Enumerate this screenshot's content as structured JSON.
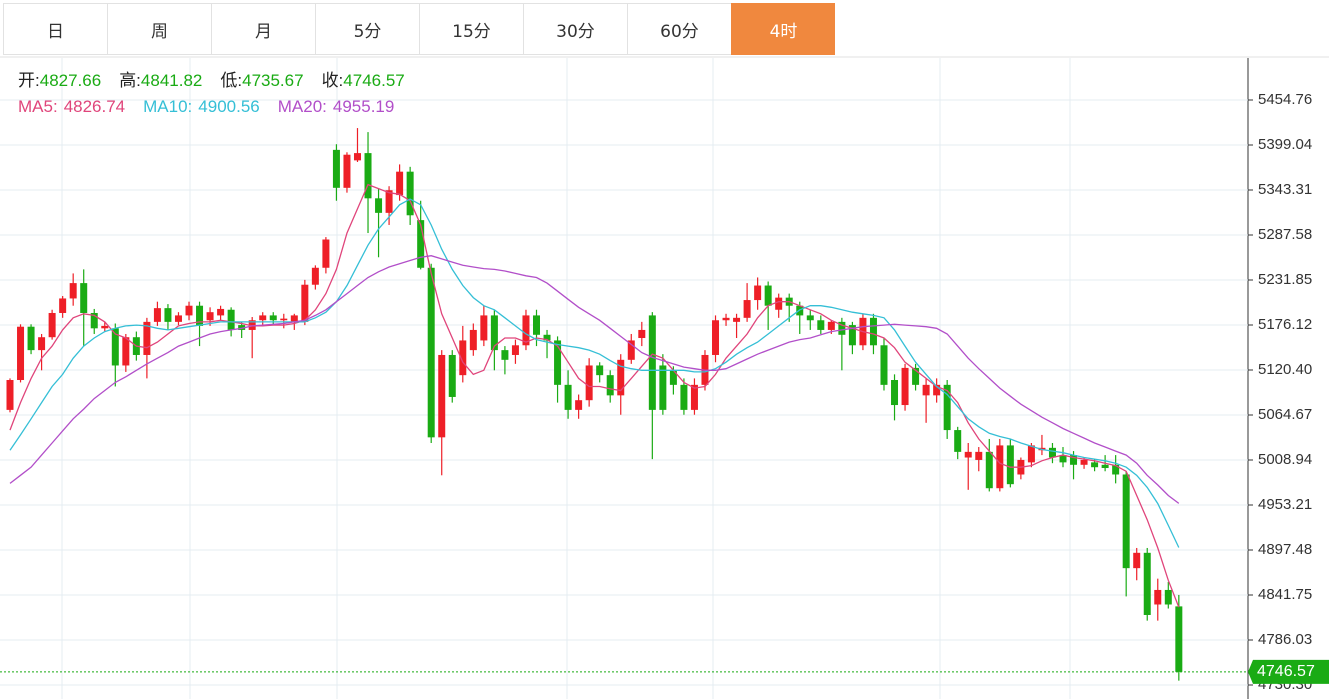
{
  "tabs": [
    "日",
    "周",
    "月",
    "5分",
    "15分",
    "30分",
    "60分",
    "4时"
  ],
  "active_tab": 7,
  "chart_data": {
    "type": "candlestick",
    "ohlc_labels": [
      "开:",
      "高:",
      "低:",
      "收:"
    ],
    "up_color": "#ee1f27",
    "down_color": "#1aab14",
    "ylim": [
      4712.96,
      5506.77
    ],
    "yticks": [
      5454.76,
      5399.04,
      5343.31,
      5287.58,
      5231.85,
      5176.12,
      {
        "value": 5120.4,
        "label": "5120.40"
      },
      5064.67,
      5008.94,
      4953.21,
      4897.48,
      4841.75,
      4786.03,
      {
        "value": 4730.3,
        "label": "4730.30"
      }
    ],
    "grid": true,
    "open": [
      5071,
      5108,
      5174,
      5145,
      5161,
      5191,
      5209,
      5228,
      5191,
      5172,
      5172,
      5126,
      5161,
      5139,
      5180,
      5197,
      5180,
      5188,
      5200,
      5182,
      5188,
      5195,
      5176,
      5170,
      5182,
      5188,
      5182,
      5180,
      5180,
      5226,
      5247,
      5393,
      5346,
      5380,
      5389,
      5333,
      5315,
      5337,
      5366,
      5306,
      5247,
      5037,
      5139,
      5114,
      5145,
      5157,
      5188,
      5145,
      5139,
      5151,
      5188,
      5164,
      5157,
      5102,
      5071,
      5083,
      5126,
      5114,
      5089,
      5133,
      5160,
      5188,
      5126,
      5120,
      5102,
      5071,
      5102,
      5139,
      5182,
      5180,
      5185,
      5207,
      5225,
      5195,
      5210,
      5200,
      5188,
      5182,
      5170,
      5180,
      5176,
      5151,
      5185,
      5151,
      5108,
      5077,
      5123,
      5089,
      5089,
      5102,
      5046,
      5012,
      5009,
      5019,
      4974,
      5027,
      4991,
      5006,
      5021,
      5024,
      5015,
      5015,
      5003,
      5006,
      5003,
      5003,
      4991,
      4875,
      4894,
      4830,
      4848,
      4827.66
    ],
    "high": [
      5110,
      5177,
      5177,
      5165,
      5195,
      5212,
      5240,
      5245,
      5196,
      5180,
      5178,
      5165,
      5168,
      5185,
      5205,
      5202,
      5192,
      5205,
      5205,
      5198,
      5200,
      5198,
      5180,
      5186,
      5192,
      5192,
      5190,
      5190,
      5232,
      5250,
      5285,
      5400,
      5390,
      5420,
      5415,
      5345,
      5348,
      5375,
      5372,
      5330,
      5252,
      5145,
      5145,
      5175,
      5178,
      5200,
      5195,
      5150,
      5158,
      5195,
      5195,
      5170,
      5162,
      5120,
      5090,
      5135,
      5130,
      5120,
      5140,
      5165,
      5180,
      5192,
      5140,
      5125,
      5110,
      5110,
      5145,
      5188,
      5190,
      5190,
      5228,
      5235,
      5230,
      5215,
      5215,
      5205,
      5195,
      5188,
      5182,
      5185,
      5180,
      5190,
      5190,
      5160,
      5115,
      5128,
      5128,
      5110,
      5110,
      5108,
      5050,
      5030,
      5025,
      5035,
      5035,
      5035,
      5012,
      5030,
      5040,
      5030,
      5025,
      5020,
      5012,
      5010,
      5015,
      5015,
      4995,
      4900,
      4900,
      4862,
      4858,
      4841.82
    ],
    "low": [
      5068,
      5105,
      5140,
      5120,
      5158,
      5185,
      5200,
      5150,
      5165,
      5168,
      5100,
      5118,
      5132,
      5110,
      5175,
      5170,
      5176,
      5182,
      5150,
      5175,
      5182,
      5162,
      5160,
      5135,
      5175,
      5176,
      5172,
      5170,
      5176,
      5220,
      5240,
      5330,
      5340,
      5378,
      5290,
      5260,
      5300,
      5330,
      5300,
      5245,
      5030,
      4990,
      5080,
      5105,
      5138,
      5150,
      5120,
      5115,
      5128,
      5145,
      5150,
      5135,
      5080,
      5060,
      5060,
      5075,
      5105,
      5080,
      5065,
      5128,
      5150,
      5010,
      5065,
      5090,
      5065,
      5065,
      5095,
      5130,
      5175,
      5160,
      5180,
      5195,
      5170,
      5185,
      5180,
      5165,
      5170,
      5165,
      5165,
      5120,
      5140,
      5145,
      5140,
      5095,
      5058,
      5070,
      5095,
      5055,
      5080,
      5035,
      5010,
      4972,
      4995,
      4970,
      4970,
      4975,
      4985,
      5000,
      5015,
      5005,
      5000,
      4985,
      4998,
      4995,
      4995,
      4980,
      4840,
      4860,
      4810,
      4810,
      4825,
      4735.67
    ],
    "close": [
      5108,
      5174,
      5145,
      5161,
      5191,
      5209,
      5228,
      5191,
      5172,
      5175,
      5126,
      5161,
      5139,
      5180,
      5197,
      5180,
      5188,
      5200,
      5175,
      5192,
      5196,
      5170,
      5170,
      5182,
      5188,
      5182,
      5184,
      5188,
      5226,
      5247,
      5282,
      5346,
      5387,
      5389,
      5333,
      5315,
      5343,
      5366,
      5312,
      5247,
      5037,
      5139,
      5087,
      5157,
      5170,
      5188,
      5145,
      5133,
      5151,
      5188,
      5164,
      5157,
      5102,
      5071,
      5083,
      5126,
      5114,
      5089,
      5133,
      5157,
      5170,
      5071,
      5071,
      5102,
      5071,
      5102,
      5139,
      5182,
      5185,
      5185,
      5207,
      5225,
      5200,
      5210,
      5200,
      5188,
      5182,
      5170,
      5180,
      5164,
      5151,
      5185,
      5151,
      5102,
      5077,
      5123,
      5102,
      5102,
      5102,
      5046,
      5019,
      5019,
      5019,
      4974,
      5027,
      4979,
      5009,
      5027,
      5024,
      5012,
      5006,
      5003,
      5009,
      5000,
      4999,
      4991,
      4875,
      4894,
      4817,
      4848,
      4830,
      4746.57
    ],
    "series": [
      {
        "name": "MA5:",
        "color": "#e0457b",
        "values": [
          5046,
          5080,
          5110,
          5135,
          5150,
          5170,
          5185,
          5190,
          5188,
          5180,
          5165,
          5160,
          5150,
          5148,
          5155,
          5165,
          5175,
          5178,
          5180,
          5180,
          5182,
          5180,
          5178,
          5175,
          5175,
          5176,
          5176,
          5178,
          5182,
          5195,
          5215,
          5245,
          5290,
          5320,
          5350,
          5345,
          5340,
          5338,
          5330,
          5300,
          5240,
          5190,
          5160,
          5130,
          5115,
          5120,
          5150,
          5160,
          5160,
          5155,
          5160,
          5158,
          5150,
          5130,
          5110,
          5100,
          5100,
          5097,
          5095,
          5110,
          5125,
          5140,
          5135,
          5120,
          5105,
          5098,
          5100,
          5115,
          5135,
          5150,
          5165,
          5185,
          5200,
          5205,
          5205,
          5200,
          5195,
          5190,
          5182,
          5176,
          5172,
          5168,
          5165,
          5160,
          5148,
          5130,
          5120,
          5110,
          5100,
          5095,
          5080,
          5055,
          5035,
          5020,
          5005,
          5000,
          5000,
          5002,
          5008,
          5012,
          5015,
          5012,
          5010,
          5008,
          5005,
          5002,
          4995,
          4965,
          4935,
          4900,
          4860,
          4826.74
        ]
      },
      {
        "name": "MA10:",
        "color": "#35bfd6",
        "values": [
          5021,
          5040,
          5060,
          5080,
          5100,
          5115,
          5135,
          5150,
          5160,
          5168,
          5172,
          5175,
          5176,
          5175,
          5172,
          5170,
          5172,
          5174,
          5176,
          5178,
          5180,
          5180,
          5180,
          5180,
          5180,
          5180,
          5180,
          5180,
          5180,
          5185,
          5192,
          5205,
          5225,
          5250,
          5275,
          5295,
          5310,
          5325,
          5332,
          5325,
          5300,
          5270,
          5245,
          5225,
          5210,
          5200,
          5195,
          5185,
          5175,
          5165,
          5158,
          5155,
          5152,
          5150,
          5148,
          5145,
          5140,
          5132,
          5125,
          5122,
          5120,
          5120,
          5120,
          5120,
          5120,
          5118,
          5118,
          5122,
          5130,
          5140,
          5148,
          5155,
          5165,
          5175,
          5185,
          5195,
          5200,
          5200,
          5198,
          5195,
          5192,
          5190,
          5188,
          5185,
          5170,
          5150,
          5130,
          5115,
          5100,
          5090,
          5075,
          5060,
          5050,
          5042,
          5038,
          5035,
          5030,
          5026,
          5022,
          5020,
          5018,
          5015,
          5012,
          5010,
          5008,
          5005,
          5000,
          4990,
          4975,
          4955,
          4928,
          4900.56
        ]
      },
      {
        "name": "MA20:",
        "color": "#b24fc9",
        "values": [
          4980,
          4990,
          5000,
          5015,
          5030,
          5045,
          5060,
          5072,
          5085,
          5095,
          5105,
          5112,
          5120,
          5128,
          5135,
          5142,
          5150,
          5155,
          5160,
          5165,
          5168,
          5170,
          5172,
          5175,
          5176,
          5177,
          5178,
          5180,
          5182,
          5188,
          5195,
          5205,
          5215,
          5225,
          5235,
          5242,
          5248,
          5252,
          5256,
          5260,
          5262,
          5258,
          5254,
          5250,
          5248,
          5246,
          5245,
          5243,
          5240,
          5237,
          5235,
          5228,
          5218,
          5208,
          5198,
          5190,
          5182,
          5172,
          5162,
          5152,
          5142,
          5136,
          5132,
          5128,
          5124,
          5122,
          5120,
          5120,
          5122,
          5128,
          5134,
          5140,
          5145,
          5150,
          5155,
          5158,
          5160,
          5164,
          5168,
          5170,
          5172,
          5174,
          5175,
          5176,
          5177,
          5176,
          5175,
          5174,
          5172,
          5165,
          5150,
          5135,
          5122,
          5110,
          5098,
          5088,
          5078,
          5070,
          5062,
          5055,
          5048,
          5042,
          5036,
          5030,
          5025,
          5020,
          5015,
          5005,
          4990,
          4978,
          4965,
          4955.19
        ]
      }
    ]
  }
}
